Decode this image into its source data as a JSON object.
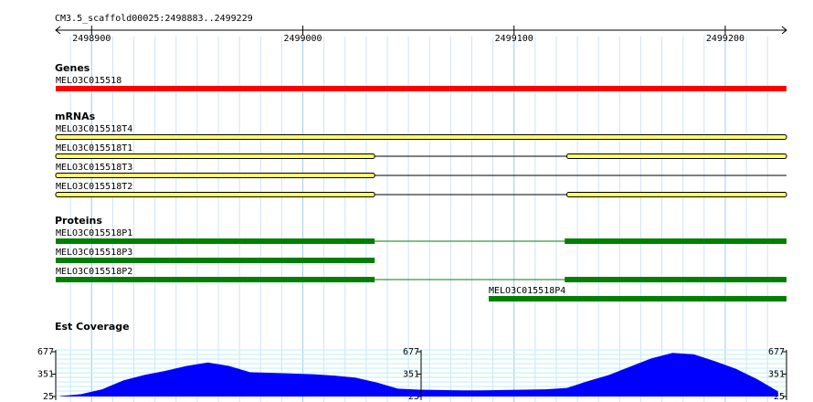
{
  "header": {
    "title": "CM3.5_scaffold00025:2498883..2499229"
  },
  "ruler": {
    "xlim": [
      2498883,
      2499229
    ],
    "xticks": [
      2498900,
      2499000,
      2499100,
      2499200
    ]
  },
  "tracks": [
    {
      "title": "Genes",
      "kind": "gene",
      "color": "#ff0000",
      "features": [
        {
          "label": "MELO3C015518",
          "start": 2498883,
          "end": 2499229
        }
      ]
    },
    {
      "title": "mRNAs",
      "kind": "mrna",
      "color": "#ffff66",
      "features": [
        {
          "label": "MELO3C015518T4",
          "start": 2498883,
          "end": 2499229,
          "exons": [
            [
              2498883,
              2499229
            ]
          ]
        },
        {
          "label": "MELO3C015518T1",
          "start": 2498883,
          "end": 2499229,
          "exons": [
            [
              2498883,
              2499034
            ],
            [
              2499125,
              2499229
            ]
          ]
        },
        {
          "label": "MELO3C015518T3",
          "start": 2498883,
          "end": 2499229,
          "exons": [
            [
              2498883,
              2499034
            ]
          ]
        },
        {
          "label": "MELO3C015518T2",
          "start": 2498883,
          "end": 2499229,
          "exons": [
            [
              2498883,
              2499034
            ],
            [
              2499125,
              2499229
            ]
          ]
        }
      ]
    },
    {
      "title": "Proteins",
      "kind": "protein",
      "color": "#008000",
      "features": [
        {
          "label": "MELO3C015518P1",
          "start": 2498883,
          "end": 2499229,
          "exons": [
            [
              2498883,
              2499034
            ],
            [
              2499124,
              2499229
            ]
          ]
        },
        {
          "label": "MELO3C015518P3",
          "start": 2498883,
          "end": 2499034,
          "exons": [
            [
              2498883,
              2499034
            ]
          ]
        },
        {
          "label": "MELO3C015518P2",
          "start": 2498883,
          "end": 2499229,
          "exons": [
            [
              2498883,
              2499034
            ],
            [
              2499124,
              2499229
            ]
          ]
        },
        {
          "label": "MELO3C015518P4",
          "start": 2499088,
          "end": 2499229,
          "exons": [
            [
              2499088,
              2499229
            ]
          ]
        }
      ]
    }
  ],
  "coverage": {
    "title": "Est Coverage",
    "color": "#0000ff",
    "ylim": [
      25,
      677
    ],
    "yticks": [
      25,
      351,
      677
    ],
    "x": [
      2498885,
      2498895,
      2498905,
      2498915,
      2498925,
      2498935,
      2498945,
      2498955,
      2498965,
      2498975,
      2498985,
      2498995,
      2499005,
      2499015,
      2499025,
      2499035,
      2499045,
      2499055,
      2499065,
      2499075,
      2499085,
      2499095,
      2499105,
      2499115,
      2499125,
      2499135,
      2499145,
      2499155,
      2499165,
      2499175,
      2499185,
      2499195,
      2499205,
      2499215,
      2499225
    ],
    "values": [
      30,
      60,
      130,
      260,
      340,
      400,
      470,
      520,
      470,
      380,
      370,
      360,
      350,
      330,
      300,
      230,
      140,
      125,
      120,
      115,
      115,
      120,
      125,
      130,
      150,
      250,
      340,
      460,
      580,
      660,
      640,
      540,
      430,
      280,
      100
    ]
  }
}
